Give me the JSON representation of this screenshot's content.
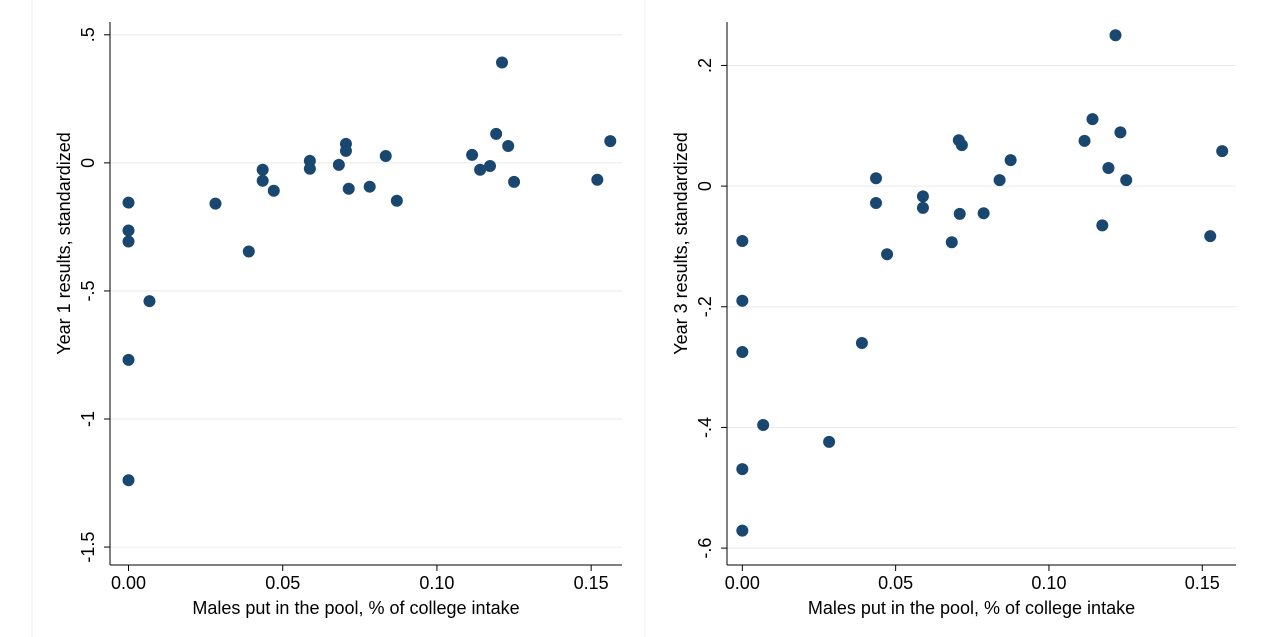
{
  "chart_data": [
    {
      "type": "scatter",
      "color": "#1a476f",
      "grid": true,
      "x_label": "Males put in the pool, % of college intake",
      "y_label": "Year 1 results, standardized",
      "xlim": [
        -0.006,
        0.16
      ],
      "ylim": [
        -1.57,
        0.55
      ],
      "xticks": [
        {
          "value": 0,
          "label": "0.00"
        },
        {
          "value": 0.05,
          "label": "0.05"
        },
        {
          "value": 0.1,
          "label": "0.10"
        },
        {
          "value": 0.15,
          "label": "0.15"
        }
      ],
      "yticks": [
        {
          "value": 0.5,
          "label": ".5"
        },
        0,
        {
          "value": -0.5,
          "label": "-.5"
        },
        {
          "value": -1,
          "label": "-1"
        },
        {
          "value": -1.5,
          "label": "-1.5"
        }
      ],
      "x": [
        0,
        0,
        0,
        0,
        0,
        0.0068,
        0.0282,
        0.039,
        0.0435,
        0.0435,
        0.0471,
        0.0588,
        0.0588,
        0.0682,
        0.0705,
        0.0705,
        0.0714,
        0.0782,
        0.0834,
        0.087,
        0.1114,
        0.114,
        0.1172,
        0.1192,
        0.1211,
        0.1231,
        0.125,
        0.152,
        0.1562
      ],
      "values": [
        -0.155,
        -0.264,
        -0.307,
        -0.769,
        -1.239,
        -0.54,
        -0.159,
        -0.346,
        -0.027,
        -0.07,
        -0.109,
        0.008,
        -0.023,
        -0.008,
        0.074,
        0.047,
        -0.101,
        -0.093,
        0.027,
        -0.148,
        0.031,
        -0.027,
        -0.012,
        0.113,
        0.392,
        0.066,
        -0.074,
        -0.066,
        0.085
      ]
    },
    {
      "type": "scatter",
      "color": "#1a476f",
      "grid": true,
      "x_label": "Males put in the pool, % of college intake",
      "y_label": "Year 3 results, standardized",
      "xlim": [
        -0.005,
        0.161
      ],
      "ylim": [
        -0.628,
        0.272
      ],
      "xticks": [
        {
          "value": 0,
          "label": "0.00"
        },
        {
          "value": 0.05,
          "label": "0.05"
        },
        {
          "value": 0.1,
          "label": "0.10"
        },
        {
          "value": 0.15,
          "label": "0.15"
        }
      ],
      "yticks": [
        {
          "value": 0.2,
          "label": ".2"
        },
        0,
        {
          "value": -0.2,
          "label": "-.2"
        },
        {
          "value": -0.4,
          "label": "-.4"
        },
        {
          "value": -0.6,
          "label": "-.6"
        }
      ],
      "x": [
        0,
        0,
        0,
        0,
        0,
        0.0068,
        0.0283,
        0.039,
        0.0436,
        0.0436,
        0.0472,
        0.0589,
        0.0589,
        0.0683,
        0.0706,
        0.0716,
        0.0709,
        0.0787,
        0.0839,
        0.0875,
        0.1116,
        0.1142,
        0.1174,
        0.1194,
        0.1217,
        0.1233,
        0.1252,
        0.1526,
        0.1565
      ],
      "values": [
        -0.091,
        -0.19,
        -0.275,
        -0.469,
        -0.571,
        -0.396,
        -0.424,
        -0.26,
        0.013,
        -0.028,
        -0.113,
        -0.017,
        -0.036,
        -0.093,
        0.076,
        0.068,
        -0.046,
        -0.045,
        0.01,
        0.043,
        0.075,
        0.111,
        -0.065,
        0.03,
        0.25,
        0.089,
        0.01,
        -0.083,
        0.058
      ]
    }
  ]
}
